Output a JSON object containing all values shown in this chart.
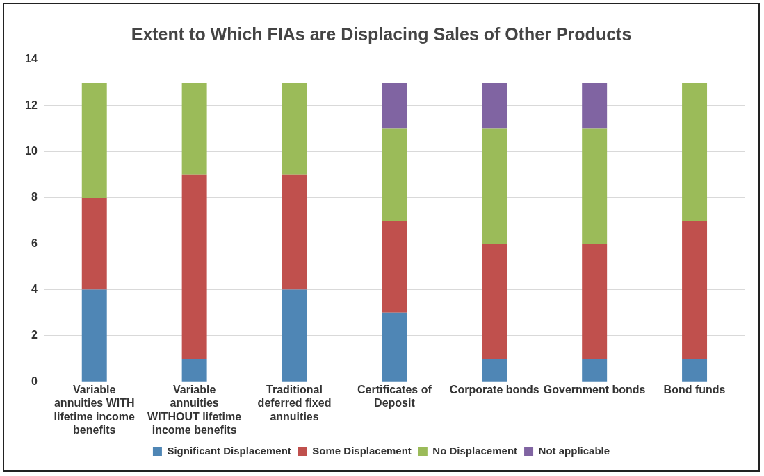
{
  "chart_data": {
    "type": "bar",
    "title": "Extent to Which FIAs are Displacing Sales of Other Products",
    "categories": [
      "Variable annuities WITH lifetime income benefits",
      "Variable annuities WITHOUT lifetime income benefits",
      "Traditional deferred fixed annuities",
      "Certificates of Deposit",
      "Corporate bonds",
      "Government bonds",
      "Bond funds"
    ],
    "stacked": true,
    "series": [
      {
        "name": "Significant Displacement",
        "color": "#4f86b5",
        "values": [
          4,
          1,
          4,
          3,
          1,
          1,
          1
        ]
      },
      {
        "name": "Some Displacement",
        "color": "#c0504d",
        "values": [
          4,
          8,
          5,
          4,
          5,
          5,
          6
        ]
      },
      {
        "name": "No Displacement",
        "color": "#9bbb59",
        "values": [
          5,
          4,
          4,
          4,
          5,
          5,
          6
        ]
      },
      {
        "name": "Not applicable",
        "color": "#8064a2",
        "values": [
          0,
          0,
          0,
          2,
          2,
          2,
          0
        ]
      }
    ],
    "ylim": [
      0,
      14
    ],
    "yticks": [
      0,
      2,
      4,
      6,
      8,
      10,
      12,
      14
    ],
    "grid": "y",
    "legend": "bottom"
  }
}
